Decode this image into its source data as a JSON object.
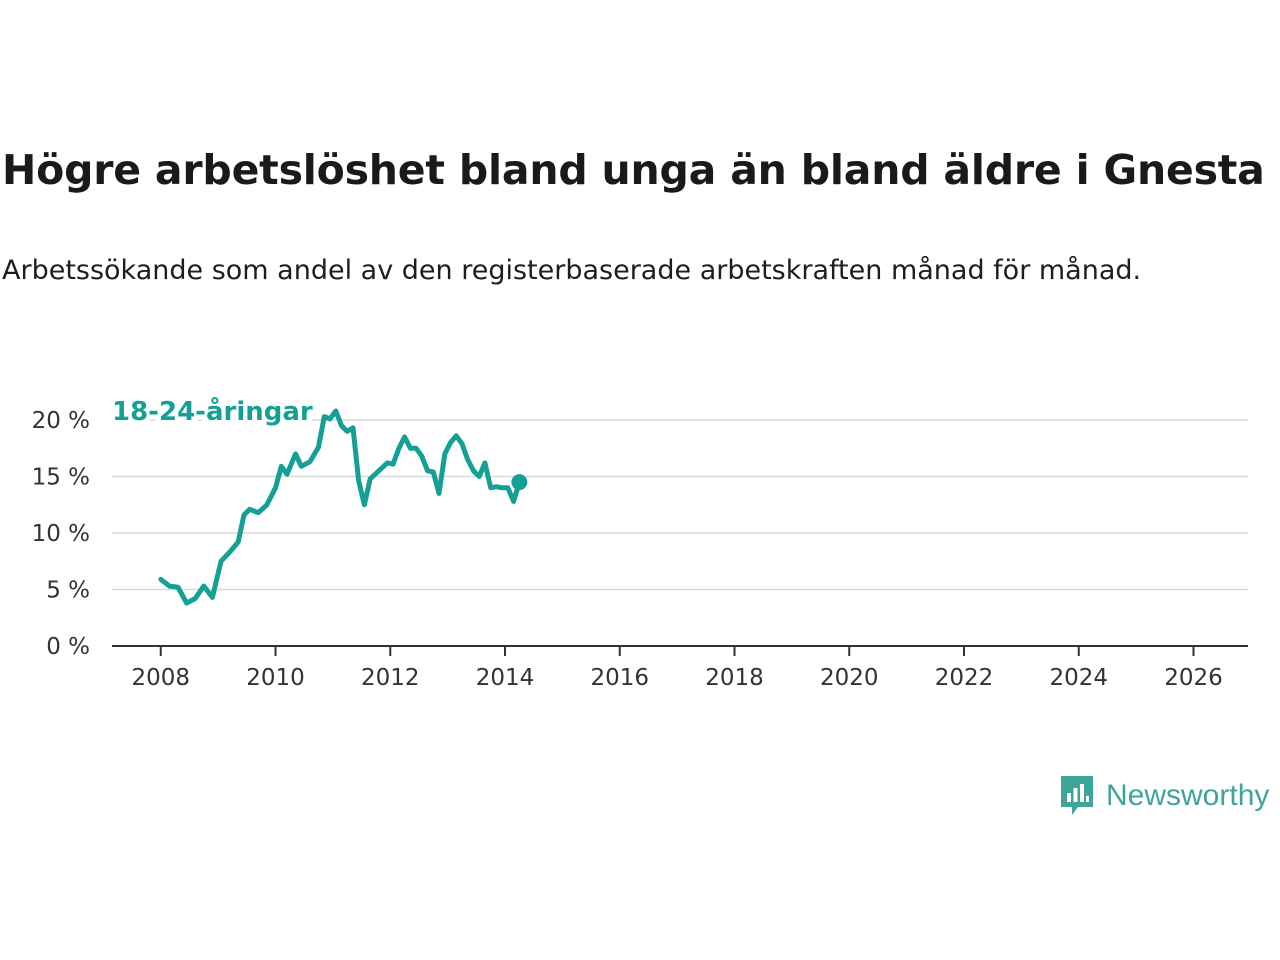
{
  "header": {
    "title": "Högre arbetslöshet bland unga än bland äldre i Gnesta",
    "subtitle": "Arbetssökande som andel av den registerbaserade arbetskraften månad för månad."
  },
  "brand": {
    "name": "Newsworthy"
  },
  "colors": {
    "youth": "#15a095",
    "total": "#6b6b6b",
    "grid": "#d9d9d9",
    "brand": "#3fa49a"
  },
  "chart_data": {
    "type": "line",
    "title": "Högre arbetslöshet bland unga än bland äldre i Gnesta",
    "subtitle": "Arbetssökande som andel av den registerbaserade arbetskraften månad för månad.",
    "xlabel": "",
    "ylabel": "",
    "xlim": [
      2007.15,
      2026.95
    ],
    "ylim": [
      0,
      20
    ],
    "grid": true,
    "x_ticks": [
      2008,
      2010,
      2012,
      2014,
      2016,
      2018,
      2020,
      2022,
      2024,
      2026
    ],
    "x_tick_labels": [
      "2008",
      "2010",
      "2012",
      "2014",
      "2016",
      "2018",
      "2020",
      "2022",
      "2024",
      "2026"
    ],
    "y_ticks": [
      0,
      5,
      10,
      15,
      20
    ],
    "y_tick_labels": [
      "0 %",
      "5 %",
      "10 %",
      "15 %",
      "20 %"
    ],
    "series": [
      {
        "name": "18-24-åringar",
        "color": "#15a095",
        "points": [
          [
            2008.0,
            5.9
          ],
          [
            2008.15,
            5.3
          ],
          [
            2008.3,
            5.2
          ],
          [
            2008.45,
            3.8
          ],
          [
            2008.6,
            4.2
          ],
          [
            2008.75,
            5.3
          ],
          [
            2008.9,
            4.3
          ],
          [
            2009.05,
            7.5
          ],
          [
            2009.2,
            8.3
          ],
          [
            2009.35,
            9.2
          ],
          [
            2009.45,
            11.6
          ],
          [
            2009.55,
            12.1
          ],
          [
            2009.7,
            11.8
          ],
          [
            2009.85,
            12.5
          ],
          [
            2010.0,
            14.0
          ],
          [
            2010.1,
            15.9
          ],
          [
            2010.2,
            15.2
          ],
          [
            2010.35,
            17.0
          ],
          [
            2010.45,
            15.9
          ],
          [
            2010.6,
            16.3
          ],
          [
            2010.75,
            17.6
          ],
          [
            2010.85,
            20.3
          ],
          [
            2010.95,
            20.1
          ],
          [
            2011.05,
            20.8
          ],
          [
            2011.15,
            19.5
          ],
          [
            2011.25,
            19.0
          ],
          [
            2011.35,
            19.3
          ],
          [
            2011.45,
            14.6
          ],
          [
            2011.55,
            12.5
          ],
          [
            2011.65,
            14.8
          ],
          [
            2011.8,
            15.5
          ],
          [
            2011.95,
            16.2
          ],
          [
            2012.05,
            16.1
          ],
          [
            2012.15,
            17.5
          ],
          [
            2012.25,
            18.5
          ],
          [
            2012.35,
            17.5
          ],
          [
            2012.45,
            17.5
          ],
          [
            2012.55,
            16.8
          ],
          [
            2012.65,
            15.5
          ],
          [
            2012.75,
            15.4
          ],
          [
            2012.85,
            13.5
          ],
          [
            2012.95,
            17.0
          ],
          [
            2013.05,
            18.0
          ],
          [
            2013.15,
            18.6
          ],
          [
            2013.25,
            17.9
          ],
          [
            2013.35,
            16.5
          ],
          [
            2013.45,
            15.5
          ],
          [
            2013.55,
            15.0
          ],
          [
            2013.65,
            16.2
          ],
          [
            2013.75,
            14.0
          ],
          [
            2013.85,
            14.1
          ],
          [
            2013.95,
            14.0
          ],
          [
            2014.05,
            14.0
          ],
          [
            2014.15,
            12.8
          ],
          [
            2014.25,
            14.5
          ]
        ],
        "points2": []
      }
    ]
  }
}
